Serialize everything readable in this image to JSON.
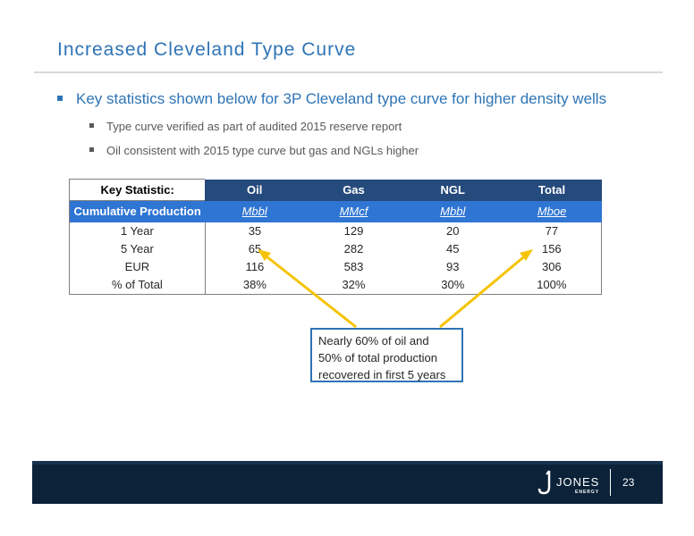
{
  "slide": {
    "title": "Increased Cleveland Type Curve",
    "bullet_main": "Key statistics shown below for 3P Cleveland type curve for higher density wells",
    "sub_bullets": [
      "Type curve verified as part of audited 2015 reserve report",
      "Oil consistent with 2015 type curve but gas and NGLs higher"
    ],
    "callout_lines": [
      "Nearly 60% of oil and",
      "50% of total production",
      "recovered in first 5 years"
    ],
    "page_number": "23"
  },
  "table": {
    "headers": [
      "Key Statistic:",
      "Oil",
      "Gas",
      "NGL",
      "Total"
    ],
    "units": [
      "Cumulative Production",
      "Mbbl",
      "MMcf",
      "Mbbl",
      "Mboe"
    ],
    "rows": [
      [
        "1 Year",
        "35",
        "129",
        "20",
        "77"
      ],
      [
        "5 Year",
        "65",
        "282",
        "45",
        "156"
      ],
      [
        "EUR",
        "116",
        "583",
        "93",
        "306"
      ],
      [
        "% of Total",
        "38%",
        "32%",
        "30%",
        "100%"
      ]
    ]
  },
  "logo": {
    "name": "JONES",
    "sub": "ENERGY"
  },
  "colors": {
    "accent": "#2e74b5",
    "header_dark": "#254a7c",
    "header_units": "#2f75d3",
    "arrow": "#f5c300",
    "footer": "#0b2238"
  }
}
